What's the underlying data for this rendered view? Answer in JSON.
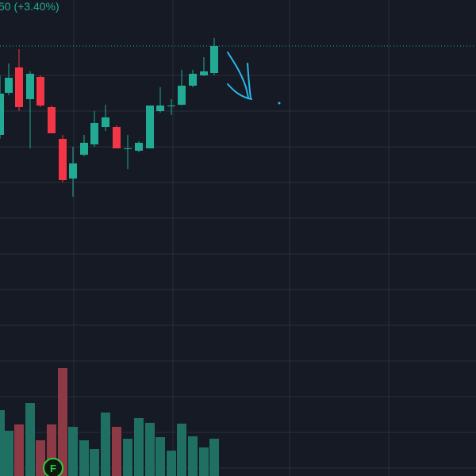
{
  "chart_data": {
    "type": "candlestick",
    "header_text": "50 (+3.40%)",
    "marker_text": "F",
    "x": [
      0,
      11,
      24,
      38,
      51,
      65,
      79,
      92,
      106,
      119,
      133,
      147,
      161,
      175,
      189,
      202,
      216,
      229,
      243,
      257,
      270
    ],
    "open": [
      430,
      483,
      515,
      475,
      503,
      465,
      425,
      375,
      405,
      418,
      440,
      440,
      413,
      410,
      413,
      460,
      467,
      468,
      492,
      505,
      508
    ],
    "high": [
      505,
      520,
      538,
      510,
      505,
      467,
      430,
      415,
      430,
      460,
      468,
      442,
      430,
      422,
      467,
      490,
      475,
      512,
      512,
      528,
      552
    ],
    "low": [
      425,
      480,
      460,
      413,
      465,
      432,
      370,
      352,
      403,
      415,
      435,
      413,
      387,
      408,
      413,
      458,
      455,
      467,
      490,
      504,
      505
    ],
    "close": [
      482,
      502,
      465,
      507,
      467,
      432,
      373,
      394,
      420,
      445,
      452,
      413,
      413,
      420,
      467,
      467,
      467,
      492,
      507,
      510,
      542
    ],
    "volume": [
      83,
      57,
      65,
      92,
      45,
      65,
      136,
      62,
      45,
      34,
      80,
      62,
      47,
      73,
      67,
      49,
      32,
      66,
      50,
      36,
      47
    ],
    "up_color": "#22ab94",
    "down_color": "#f23645",
    "up_volume_color": "#1f6f63",
    "down_volume_color": "#8e3a46",
    "last_price_line": 542,
    "ylim": [
      0,
      600
    ],
    "y2lim": [
      0,
      600
    ]
  }
}
